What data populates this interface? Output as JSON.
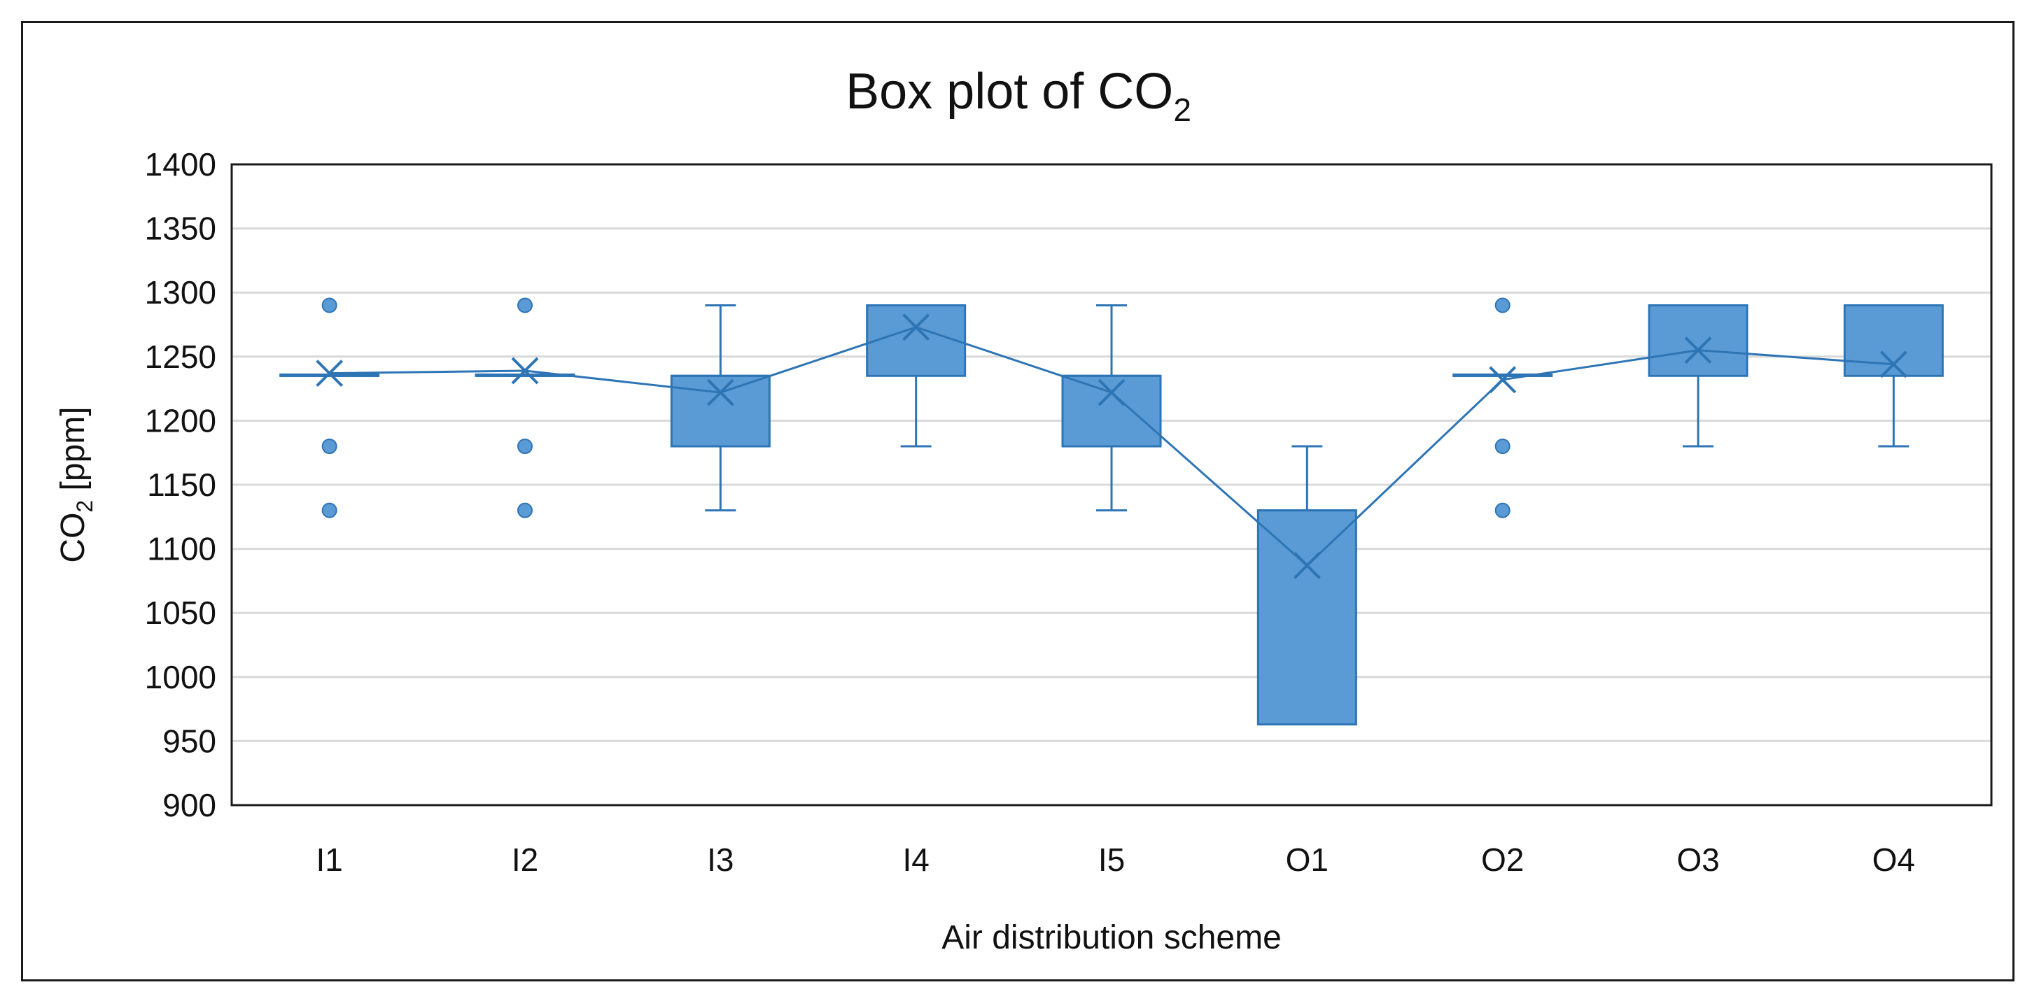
{
  "chart_data": {
    "type": "box",
    "title": "Box plot of CO",
    "title_subscript": "2",
    "xlabel": "Air distribution scheme",
    "ylabel_prefix": "CO",
    "ylabel_subscript": "2",
    "ylabel_suffix": " [ppm]",
    "ylim": [
      900,
      1400
    ],
    "yticks": [
      900,
      950,
      1000,
      1050,
      1100,
      1150,
      1200,
      1250,
      1300,
      1350,
      1400
    ],
    "grid": true,
    "categories": [
      "I1",
      "I2",
      "I3",
      "I4",
      "I5",
      "O1",
      "O2",
      "O3",
      "O4"
    ],
    "series": [
      {
        "name": "CO2",
        "color": "#5b9bd5",
        "edge_color": "#2e75b6",
        "boxes": [
          {
            "category": "I1",
            "whisker_low": 1235,
            "q1": 1235,
            "median": 1235,
            "q3": 1236,
            "whisker_high": 1236,
            "mean": 1237,
            "outliers": [
              1130,
              1180,
              1290
            ]
          },
          {
            "category": "I2",
            "whisker_low": 1235,
            "q1": 1235,
            "median": 1235,
            "q3": 1236,
            "whisker_high": 1236,
            "mean": 1239,
            "outliers": [
              1130,
              1180,
              1290
            ]
          },
          {
            "category": "I3",
            "whisker_low": 1130,
            "q1": 1180,
            "median": 1235,
            "q3": 1235,
            "whisker_high": 1290,
            "mean": 1222,
            "outliers": []
          },
          {
            "category": "I4",
            "whisker_low": 1180,
            "q1": 1235,
            "median": 1290,
            "q3": 1290,
            "whisker_high": 1290,
            "mean": 1273,
            "outliers": []
          },
          {
            "category": "I5",
            "whisker_low": 1130,
            "q1": 1180,
            "median": 1235,
            "q3": 1235,
            "whisker_high": 1290,
            "mean": 1222,
            "outliers": []
          },
          {
            "category": "O1",
            "whisker_low": 963,
            "q1": 963,
            "median": 1130,
            "q3": 1130,
            "whisker_high": 1180,
            "mean": 1087,
            "outliers": []
          },
          {
            "category": "O2",
            "whisker_low": 1235,
            "q1": 1235,
            "median": 1235,
            "q3": 1236,
            "whisker_high": 1236,
            "mean": 1232,
            "outliers": [
              1130,
              1180,
              1290
            ]
          },
          {
            "category": "O3",
            "whisker_low": 1180,
            "q1": 1235,
            "median": 1290,
            "q3": 1290,
            "whisker_high": 1290,
            "mean": 1255,
            "outliers": []
          },
          {
            "category": "O4",
            "whisker_low": 1180,
            "q1": 1235,
            "median": 1290,
            "q3": 1290,
            "whisker_high": 1290,
            "mean": 1244,
            "outliers": []
          }
        ]
      }
    ]
  }
}
